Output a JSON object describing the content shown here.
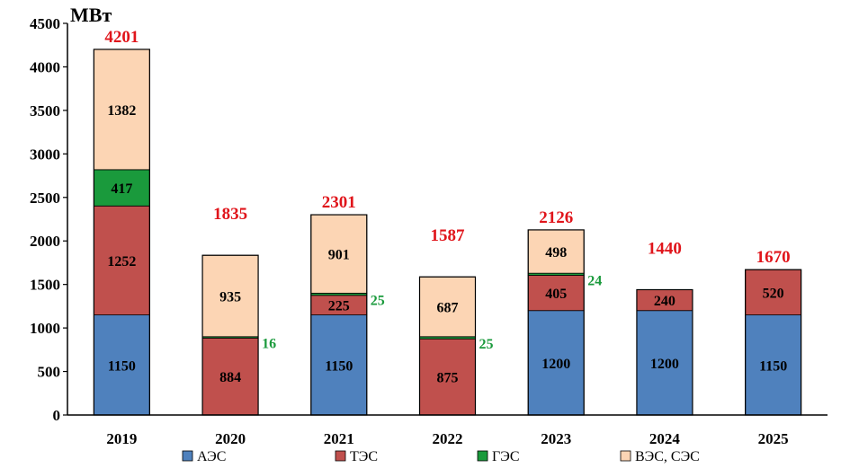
{
  "chart_data": {
    "type": "bar",
    "stacked": true,
    "unit_label": "МВт",
    "categories": [
      "2019",
      "2020",
      "2021",
      "2022",
      "2023",
      "2024",
      "2025"
    ],
    "series": [
      {
        "name": "АЭС",
        "color": "#4f81bd",
        "values": [
          1150,
          0,
          1150,
          0,
          1200,
          1200,
          1150
        ]
      },
      {
        "name": "ТЭС",
        "color": "#c0504d",
        "values": [
          1252,
          884,
          225,
          875,
          405,
          240,
          520
        ]
      },
      {
        "name": "ГЭС",
        "color": "#1a9a3c",
        "values": [
          417,
          16,
          25,
          25,
          24,
          0,
          0
        ]
      },
      {
        "name": "ВЭС, СЭС",
        "color": "#fcd5b4",
        "values": [
          1382,
          935,
          901,
          687,
          498,
          0,
          0
        ]
      }
    ],
    "totals": [
      4201,
      1835,
      2301,
      1587,
      2126,
      1440,
      1670
    ],
    "ylim": [
      0,
      4500
    ],
    "yticks": [
      0,
      500,
      1000,
      1500,
      2000,
      2500,
      3000,
      3500,
      4000,
      4500
    ],
    "grid": false,
    "legend_position": "bottom"
  }
}
